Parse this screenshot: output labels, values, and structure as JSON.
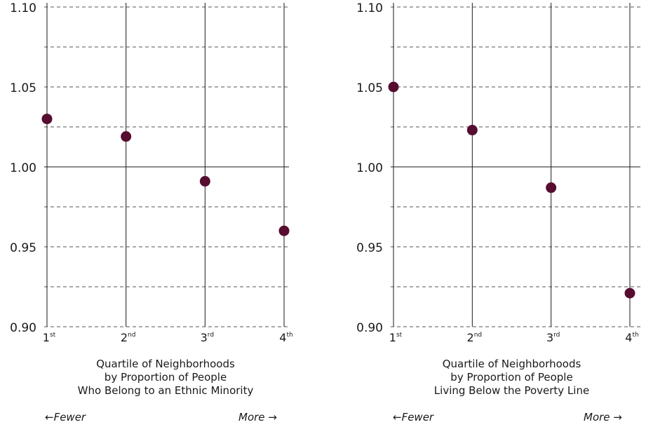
{
  "chart_data": [
    {
      "type": "scatter",
      "categories": [
        "1st",
        "2nd",
        "3rd",
        "4th"
      ],
      "tick_labels": [
        {
          "num": "1",
          "sup": "st"
        },
        {
          "num": "2",
          "sup": "nd"
        },
        {
          "num": "3",
          "sup": "rd"
        },
        {
          "num": "4",
          "sup": "th"
        }
      ],
      "values": [
        1.03,
        1.019,
        0.991,
        0.96
      ],
      "xlabel": [
        "Quartile of Neighborhoods",
        "by Proportion of People",
        "Who Belong to an Ethnic Minority"
      ],
      "ylim": [
        0.9,
        1.1
      ],
      "yticks": [
        "0.90",
        "0.95",
        "1.00",
        "1.05",
        "1.10"
      ],
      "annotation_left": "←Fewer",
      "annotation_right": "More →",
      "grid": true
    },
    {
      "type": "scatter",
      "categories": [
        "1st",
        "2nd",
        "3rd",
        "4th"
      ],
      "tick_labels": [
        {
          "num": "1",
          "sup": "st"
        },
        {
          "num": "2",
          "sup": "nd"
        },
        {
          "num": "3",
          "sup": "rd"
        },
        {
          "num": "4",
          "sup": "th"
        }
      ],
      "values": [
        1.05,
        1.023,
        0.987,
        0.921
      ],
      "xlabel": [
        "Quartile of Neighborhoods",
        "by Proportion of People",
        "Living Below the Poverty Line"
      ],
      "ylim": [
        0.9,
        1.1
      ],
      "yticks": [
        "0.90",
        "0.95",
        "1.00",
        "1.05",
        "1.10"
      ],
      "annotation_left": "←Fewer",
      "annotation_right": "More →",
      "grid": true
    }
  ],
  "colors": {
    "point": "#560d2f",
    "axis": "#1a1a1a",
    "grid_dash": "#555555"
  }
}
